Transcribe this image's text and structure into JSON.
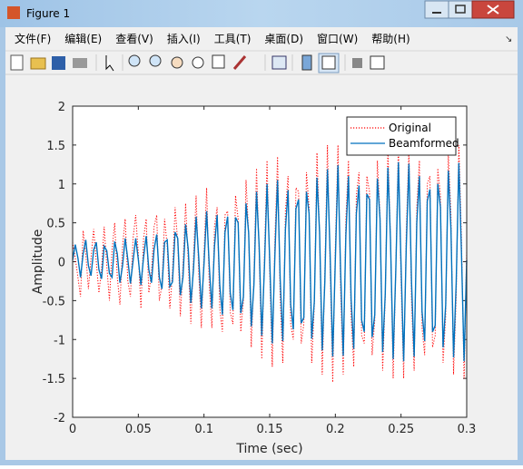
{
  "window": {
    "title": "Figure 1",
    "menu": [
      "文件(F)",
      "编辑(E)",
      "查看(V)",
      "插入(I)",
      "工具(T)",
      "桌面(D)",
      "窗口(W)",
      "帮助(H)"
    ]
  },
  "chart_data": {
    "type": "line",
    "xlabel": "Time (sec)",
    "ylabel": "Amplitude",
    "xlim": [
      0,
      0.3
    ],
    "ylim": [
      -2,
      2
    ],
    "xticks": [
      0,
      0.05,
      0.1,
      0.15,
      0.2,
      0.25,
      0.3
    ],
    "yticks": [
      -2,
      -1.5,
      -1,
      -0.5,
      0,
      0.5,
      1,
      1.5,
      2
    ],
    "legend": "northeast",
    "grid": false,
    "x": [
      0,
      0.002,
      0.004,
      0.006,
      0.008,
      0.01,
      0.012,
      0.014,
      0.016,
      0.018,
      0.02,
      0.022,
      0.024,
      0.026,
      0.028,
      0.03,
      0.032,
      0.034,
      0.036,
      0.038,
      0.04,
      0.042,
      0.044,
      0.046,
      0.048,
      0.05,
      0.052,
      0.054,
      0.056,
      0.058,
      0.06,
      0.062,
      0.064,
      0.066,
      0.068,
      0.07,
      0.072,
      0.074,
      0.076,
      0.078,
      0.08,
      0.082,
      0.084,
      0.086,
      0.088,
      0.09,
      0.092,
      0.094,
      0.096,
      0.098,
      0.1,
      0.102,
      0.104,
      0.106,
      0.108,
      0.11,
      0.112,
      0.114,
      0.116,
      0.118,
      0.12,
      0.122,
      0.124,
      0.126,
      0.128,
      0.13,
      0.132,
      0.134,
      0.136,
      0.138,
      0.14,
      0.142,
      0.144,
      0.146,
      0.148,
      0.15,
      0.152,
      0.154,
      0.156,
      0.158,
      0.16,
      0.162,
      0.164,
      0.166,
      0.168,
      0.17,
      0.172,
      0.174,
      0.176,
      0.178,
      0.18,
      0.182,
      0.184,
      0.186,
      0.188,
      0.19,
      0.192,
      0.194,
      0.196,
      0.198,
      0.2,
      0.202,
      0.204,
      0.206,
      0.208,
      0.21,
      0.212,
      0.214,
      0.216,
      0.218,
      0.22,
      0.222,
      0.224,
      0.226,
      0.228,
      0.23,
      0.232,
      0.234,
      0.236,
      0.238,
      0.24,
      0.242,
      0.244,
      0.246,
      0.248,
      0.25,
      0.252,
      0.254,
      0.256,
      0.258,
      0.26,
      0.262,
      0.264,
      0.266,
      0.268,
      0.27,
      0.272,
      0.274,
      0.276,
      0.278,
      0.28,
      0.282,
      0.284,
      0.286,
      0.288,
      0.29,
      0.292,
      0.294,
      0.296,
      0.298,
      0.3
    ],
    "series": [
      {
        "name": "Original",
        "color": "#ff0000",
        "dash": "dotted",
        "values": [
          0.25,
          0.05,
          -0.2,
          -0.45,
          0.4,
          0.1,
          -0.35,
          0.05,
          0.42,
          0.0,
          -0.4,
          -0.1,
          0.45,
          -0.05,
          -0.5,
          0.15,
          0.5,
          -0.2,
          -0.55,
          0.2,
          0.55,
          -0.25,
          -0.45,
          0.3,
          0.6,
          0.1,
          -0.6,
          0.3,
          0.55,
          -0.4,
          -0.15,
          0.45,
          0.6,
          -0.5,
          -0.3,
          0.55,
          0.2,
          -0.6,
          -0.15,
          0.7,
          0.25,
          -0.7,
          -0.05,
          0.75,
          0.0,
          -0.8,
          0.05,
          0.85,
          -0.15,
          -0.85,
          0.1,
          0.95,
          -0.3,
          -0.85,
          0.45,
          0.7,
          -0.6,
          -0.9,
          0.6,
          0.65,
          -0.65,
          -0.8,
          0.85,
          0.55,
          -0.9,
          -0.5,
          1.05,
          0.35,
          -1.1,
          -0.2,
          1.2,
          0.1,
          -1.25,
          0.05,
          1.3,
          -0.1,
          -1.35,
          0.3,
          1.35,
          -0.45,
          -1.3,
          0.65,
          1.1,
          -0.8,
          -1.0,
          0.95,
          0.9,
          -1.05,
          -0.8,
          1.15,
          0.7,
          -1.3,
          -0.55,
          1.4,
          0.35,
          -1.45,
          -0.15,
          1.5,
          -0.05,
          -1.55,
          0.2,
          1.5,
          -0.35,
          -1.45,
          0.55,
          1.3,
          -0.7,
          -1.35,
          0.85,
          1.15,
          -0.95,
          -1.05,
          1.1,
          0.9,
          -1.2,
          -0.75,
          1.3,
          0.6,
          -1.4,
          -0.45,
          1.45,
          0.3,
          -1.5,
          -0.1,
          1.5,
          -0.2,
          -1.5,
          0.4,
          1.45,
          -0.5,
          -1.4,
          0.7,
          1.3,
          -0.85,
          -1.2,
          1.0,
          1.1,
          -1.1,
          -0.95,
          1.2,
          0.85,
          -1.3,
          -0.7,
          1.4,
          0.6,
          -1.45,
          -0.45,
          1.5,
          0.3,
          -1.5,
          0.15
        ]
      },
      {
        "name": "Beamformed",
        "color": "#0072bd",
        "dash": "solid",
        "values": [
          0.02,
          0.22,
          0.05,
          -0.2,
          0.1,
          0.28,
          -0.05,
          -0.18,
          0.15,
          0.25,
          -0.1,
          -0.22,
          0.2,
          0.14,
          -0.15,
          -0.2,
          0.26,
          0.1,
          -0.27,
          -0.05,
          0.3,
          0.03,
          -0.28,
          0.01,
          0.3,
          0.03,
          -0.3,
          0.06,
          0.33,
          -0.1,
          -0.27,
          0.16,
          0.35,
          -0.2,
          -0.35,
          0.25,
          0.28,
          -0.32,
          -0.26,
          0.38,
          0.3,
          -0.43,
          -0.2,
          0.48,
          0.16,
          -0.53,
          -0.1,
          0.58,
          0.05,
          -0.6,
          -0.03,
          0.65,
          -0.05,
          -0.6,
          0.2,
          0.6,
          -0.3,
          -0.68,
          0.38,
          0.58,
          -0.4,
          -0.62,
          0.57,
          0.5,
          -0.66,
          -0.45,
          0.75,
          0.37,
          -0.83,
          -0.3,
          0.9,
          0.2,
          -0.95,
          -0.08,
          1.0,
          0.04,
          -1.05,
          0.1,
          1.05,
          -0.22,
          -1.02,
          0.42,
          0.92,
          -0.55,
          -0.87,
          0.68,
          0.8,
          -0.79,
          -0.72,
          0.9,
          0.62,
          -0.99,
          -0.51,
          1.08,
          0.38,
          -1.14,
          -0.25,
          1.19,
          0.11,
          -1.22,
          0.03,
          1.24,
          -0.12,
          -1.21,
          0.34,
          1.1,
          -0.48,
          -1.12,
          0.62,
          0.98,
          -0.75,
          -0.9,
          0.87,
          0.8,
          -0.97,
          -0.68,
          1.07,
          0.55,
          -1.16,
          -0.41,
          1.21,
          0.27,
          -1.25,
          -0.12,
          1.28,
          -0.03,
          -1.28,
          0.2,
          1.26,
          -0.27,
          -1.22,
          0.5,
          1.1,
          -0.64,
          -1.02,
          0.78,
          0.93,
          -0.9,
          -0.82,
          1.0,
          0.7,
          -1.1,
          -0.56,
          1.17,
          0.42,
          -1.23,
          -0.27,
          1.27,
          0.12,
          -1.28,
          0.02
        ]
      }
    ]
  }
}
